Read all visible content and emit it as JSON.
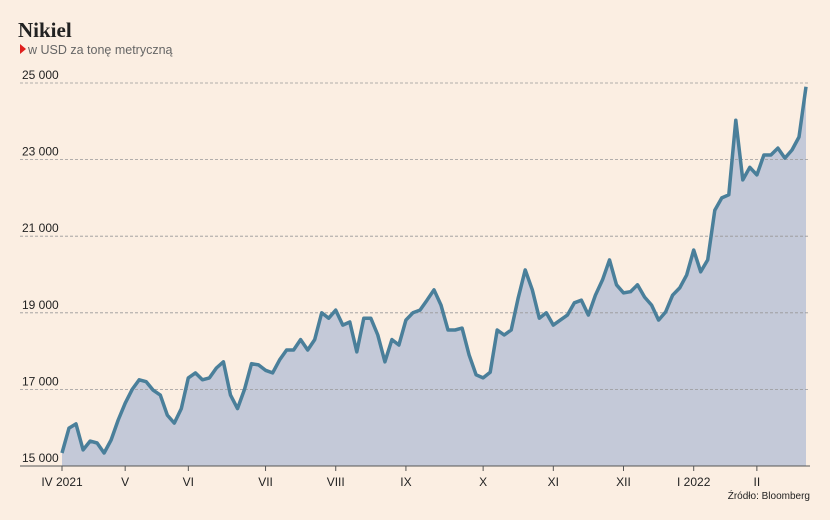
{
  "chart_data": {
    "type": "area",
    "title": "Nikiel",
    "subtitle": "w USD za tonę metryczną",
    "source": "Źródło: Bloomberg",
    "categories": [
      "IV 2021",
      null,
      null,
      null,
      null,
      null,
      null,
      null,
      null,
      "V",
      null,
      null,
      null,
      null,
      null,
      null,
      null,
      null,
      "VI",
      null,
      null,
      null,
      null,
      null,
      null,
      null,
      null,
      null,
      null,
      "VII",
      null,
      null,
      null,
      null,
      null,
      null,
      null,
      null,
      null,
      "VIII",
      null,
      null,
      null,
      null,
      null,
      null,
      null,
      null,
      null,
      "IX",
      null,
      null,
      null,
      null,
      null,
      null,
      null,
      null,
      null,
      null,
      "X",
      null,
      null,
      null,
      null,
      null,
      null,
      null,
      null,
      null,
      "XI",
      null,
      null,
      null,
      null,
      null,
      null,
      null,
      null,
      null,
      "XII",
      null,
      null,
      null,
      null,
      null,
      null,
      null,
      null,
      null,
      "I 2022",
      null,
      null,
      null,
      null,
      null,
      null,
      null,
      null,
      "II",
      null,
      null,
      null,
      null,
      null,
      null,
      null
    ],
    "values": [
      15340,
      15990,
      16100,
      15420,
      15650,
      15600,
      15340,
      15680,
      16200,
      16640,
      17000,
      17250,
      17200,
      16980,
      16850,
      16330,
      16120,
      16500,
      17300,
      17430,
      17250,
      17300,
      17560,
      17720,
      16850,
      16500,
      17000,
      17670,
      17640,
      17500,
      17430,
      17770,
      18030,
      18030,
      18300,
      18030,
      18300,
      19000,
      18860,
      19070,
      18680,
      18760,
      17980,
      18860,
      18860,
      18420,
      17720,
      18300,
      18160,
      18810,
      19000,
      19070,
      19330,
      19600,
      19200,
      18550,
      18550,
      18600,
      17900,
      17380,
      17300,
      17450,
      18550,
      18420,
      18550,
      19390,
      20120,
      19600,
      18860,
      19000,
      18680,
      18810,
      18940,
      19260,
      19330,
      18940,
      19460,
      19860,
      20380,
      19730,
      19520,
      19550,
      19730,
      19410,
      19200,
      18810,
      19020,
      19460,
      19650,
      19990,
      20640,
      20070,
      20380,
      21680,
      22000,
      22080,
      24030,
      22470,
      22800,
      22600,
      23120,
      23120,
      23300,
      23040,
      23250,
      23590,
      24900
    ],
    "color": "#4a7f9a",
    "fill_color": "#c4c9d8",
    "ylim": [
      15000,
      25000
    ],
    "yticks": [
      {
        "value": 15000,
        "label": "15 000"
      },
      {
        "value": 17000,
        "label": "17 000"
      },
      {
        "value": 19000,
        "label": "19 000"
      },
      {
        "value": 21000,
        "label": "21 000"
      },
      {
        "value": 23000,
        "label": "23 000"
      },
      {
        "value": 25000,
        "label": "25 000"
      }
    ],
    "grid": true
  }
}
